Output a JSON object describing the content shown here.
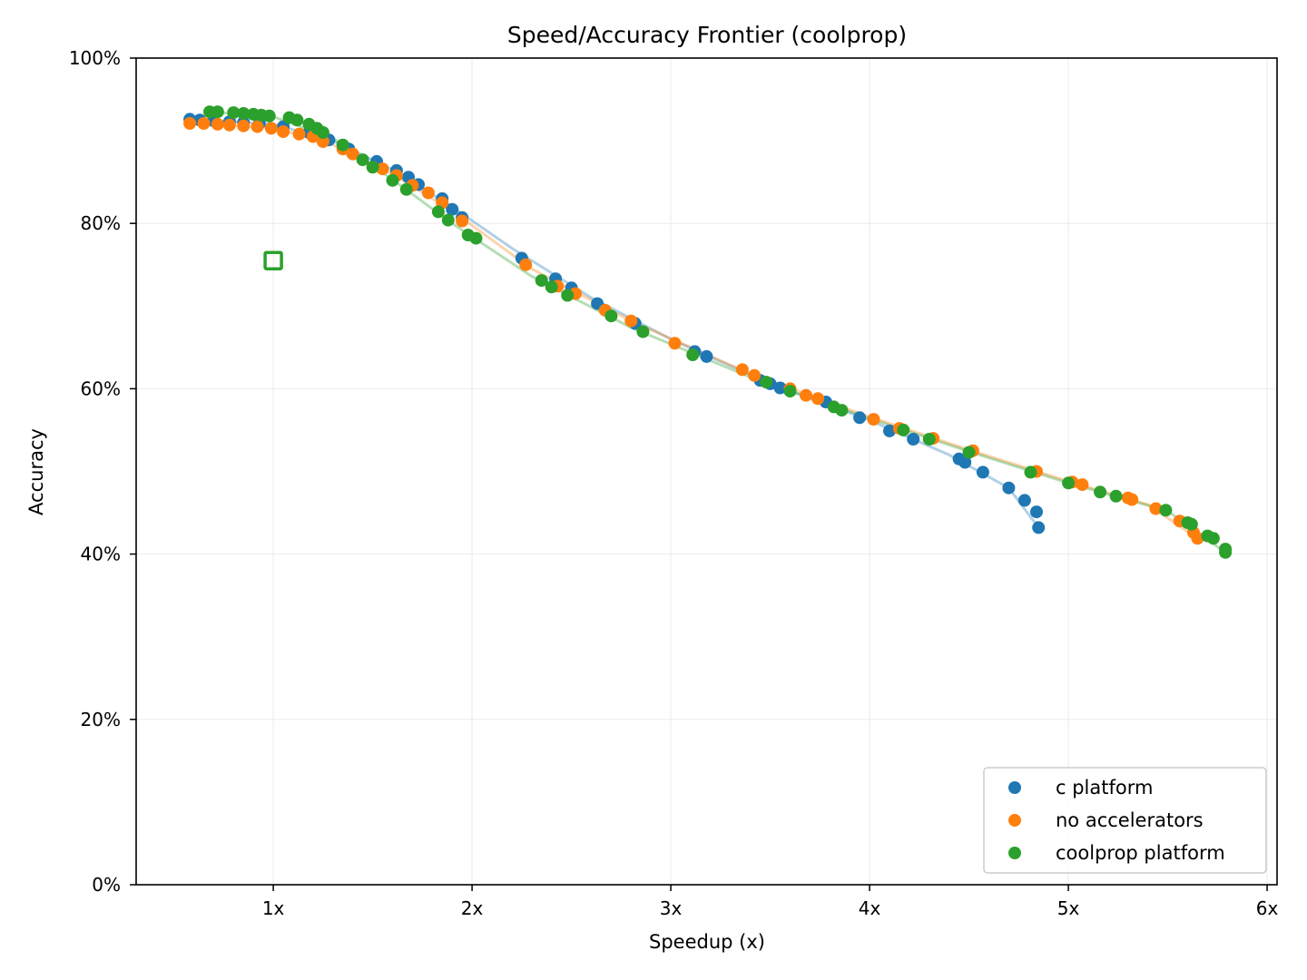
{
  "chart_data": {
    "type": "scatter",
    "title": "Speed/Accuracy Frontier (coolprop)",
    "xlabel": "Speedup (x)",
    "ylabel": "Accuracy",
    "xlim": [
      0.31,
      6.05
    ],
    "ylim": [
      0,
      100
    ],
    "x_ticks": [
      1,
      2,
      3,
      4,
      5,
      6
    ],
    "x_tick_labels": [
      "1x",
      "2x",
      "3x",
      "4x",
      "5x",
      "6x"
    ],
    "y_ticks": [
      0,
      20,
      40,
      60,
      80,
      100
    ],
    "y_tick_labels": [
      "0%",
      "20%",
      "40%",
      "60%",
      "80%",
      "100%"
    ],
    "grid": true,
    "legend_position": "lower right",
    "series": [
      {
        "name": "c platform",
        "color": "#1f77b4",
        "points": [
          [
            0.58,
            92.6
          ],
          [
            0.63,
            92.5
          ],
          [
            0.7,
            92.4
          ],
          [
            0.78,
            92.3
          ],
          [
            0.85,
            92.2
          ],
          [
            0.93,
            92.1
          ],
          [
            1.05,
            91.7
          ],
          [
            1.18,
            91.0
          ],
          [
            1.28,
            90.1
          ],
          [
            1.38,
            89.0
          ],
          [
            1.52,
            87.5
          ],
          [
            1.62,
            86.4
          ],
          [
            1.68,
            85.6
          ],
          [
            1.73,
            84.7
          ],
          [
            1.85,
            83.0
          ],
          [
            1.9,
            81.7
          ],
          [
            1.95,
            80.7
          ],
          [
            2.25,
            75.8
          ],
          [
            2.42,
            73.3
          ],
          [
            2.5,
            72.2
          ],
          [
            2.63,
            70.3
          ],
          [
            2.82,
            67.9
          ],
          [
            3.12,
            64.5
          ],
          [
            3.18,
            63.9
          ],
          [
            3.45,
            61.0
          ],
          [
            3.5,
            60.6
          ],
          [
            3.55,
            60.1
          ],
          [
            3.78,
            58.4
          ],
          [
            3.95,
            56.5
          ],
          [
            4.1,
            54.9
          ],
          [
            4.22,
            53.9
          ],
          [
            4.45,
            51.5
          ],
          [
            4.48,
            51.1
          ],
          [
            4.57,
            49.9
          ],
          [
            4.7,
            48.0
          ],
          [
            4.78,
            46.5
          ],
          [
            4.84,
            45.1
          ],
          [
            4.85,
            43.2
          ]
        ],
        "fit_line": [
          [
            0.58,
            92.6
          ],
          [
            1.0,
            92.0
          ],
          [
            1.3,
            90.0
          ],
          [
            1.6,
            86.5
          ],
          [
            1.9,
            82.0
          ],
          [
            2.2,
            77.0
          ],
          [
            2.6,
            71.0
          ],
          [
            3.0,
            66.0
          ],
          [
            3.5,
            60.6
          ],
          [
            4.0,
            56.2
          ],
          [
            4.4,
            52.0
          ],
          [
            4.7,
            48.0
          ],
          [
            4.85,
            43.2
          ]
        ]
      },
      {
        "name": "no accelerators",
        "color": "#ff7f0e",
        "points": [
          [
            0.58,
            92.1
          ],
          [
            0.65,
            92.1
          ],
          [
            0.72,
            92.0
          ],
          [
            0.78,
            91.9
          ],
          [
            0.85,
            91.8
          ],
          [
            0.92,
            91.7
          ],
          [
            0.99,
            91.5
          ],
          [
            1.05,
            91.1
          ],
          [
            1.13,
            90.8
          ],
          [
            1.2,
            90.5
          ],
          [
            1.25,
            89.9
          ],
          [
            1.35,
            89.0
          ],
          [
            1.4,
            88.4
          ],
          [
            1.55,
            86.6
          ],
          [
            1.62,
            85.8
          ],
          [
            1.7,
            84.6
          ],
          [
            1.78,
            83.7
          ],
          [
            1.85,
            82.5
          ],
          [
            1.95,
            80.3
          ],
          [
            2.27,
            75.0
          ],
          [
            2.43,
            72.4
          ],
          [
            2.52,
            71.5
          ],
          [
            2.67,
            69.5
          ],
          [
            2.8,
            68.2
          ],
          [
            3.02,
            65.5
          ],
          [
            3.36,
            62.3
          ],
          [
            3.42,
            61.6
          ],
          [
            3.6,
            60.0
          ],
          [
            3.68,
            59.2
          ],
          [
            3.74,
            58.8
          ],
          [
            4.02,
            56.3
          ],
          [
            4.15,
            55.2
          ],
          [
            4.32,
            54.0
          ],
          [
            4.52,
            52.5
          ],
          [
            4.84,
            50.0
          ],
          [
            5.02,
            48.7
          ],
          [
            5.07,
            48.4
          ],
          [
            5.3,
            46.8
          ],
          [
            5.32,
            46.6
          ],
          [
            5.44,
            45.5
          ],
          [
            5.56,
            44.0
          ],
          [
            5.63,
            42.6
          ],
          [
            5.65,
            41.9
          ]
        ],
        "fit_line": [
          [
            0.58,
            92.1
          ],
          [
            1.0,
            91.6
          ],
          [
            1.3,
            89.5
          ],
          [
            1.6,
            86.0
          ],
          [
            1.9,
            81.5
          ],
          [
            2.3,
            74.5
          ],
          [
            2.8,
            68.2
          ],
          [
            3.4,
            61.8
          ],
          [
            4.0,
            56.6
          ],
          [
            4.5,
            52.6
          ],
          [
            5.0,
            48.8
          ],
          [
            5.4,
            46.0
          ],
          [
            5.65,
            41.9
          ]
        ]
      },
      {
        "name": "coolprop platform",
        "color": "#2ca02c",
        "points": [
          [
            0.68,
            93.5
          ],
          [
            0.72,
            93.5
          ],
          [
            0.8,
            93.4
          ],
          [
            0.85,
            93.3
          ],
          [
            0.9,
            93.2
          ],
          [
            0.94,
            93.1
          ],
          [
            0.98,
            93.0
          ],
          [
            1.08,
            92.8
          ],
          [
            1.12,
            92.5
          ],
          [
            1.18,
            92.0
          ],
          [
            1.22,
            91.5
          ],
          [
            1.25,
            91.0
          ],
          [
            1.35,
            89.5
          ],
          [
            1.45,
            87.7
          ],
          [
            1.5,
            86.8
          ],
          [
            1.6,
            85.2
          ],
          [
            1.67,
            84.1
          ],
          [
            1.83,
            81.4
          ],
          [
            1.88,
            80.4
          ],
          [
            1.98,
            78.6
          ],
          [
            2.02,
            78.2
          ],
          [
            2.35,
            73.1
          ],
          [
            2.4,
            72.3
          ],
          [
            2.48,
            71.3
          ],
          [
            2.7,
            68.8
          ],
          [
            2.86,
            66.9
          ],
          [
            3.11,
            64.1
          ],
          [
            3.48,
            60.8
          ],
          [
            3.6,
            59.7
          ],
          [
            3.82,
            57.8
          ],
          [
            3.86,
            57.4
          ],
          [
            4.17,
            55.0
          ],
          [
            4.3,
            53.9
          ],
          [
            4.5,
            52.3
          ],
          [
            4.81,
            49.9
          ],
          [
            5.0,
            48.6
          ],
          [
            5.16,
            47.5
          ],
          [
            5.24,
            47.0
          ],
          [
            5.49,
            45.3
          ],
          [
            5.6,
            43.8
          ],
          [
            5.62,
            43.6
          ],
          [
            5.7,
            42.2
          ],
          [
            5.73,
            41.9
          ],
          [
            5.79,
            40.6
          ],
          [
            5.79,
            40.2
          ]
        ],
        "fit_line": [
          [
            0.68,
            93.5
          ],
          [
            1.0,
            92.9
          ],
          [
            1.3,
            90.3
          ],
          [
            1.6,
            85.3
          ],
          [
            1.9,
            80.0
          ],
          [
            2.3,
            73.6
          ],
          [
            2.8,
            67.4
          ],
          [
            3.4,
            61.4
          ],
          [
            4.0,
            56.4
          ],
          [
            4.5,
            52.4
          ],
          [
            5.0,
            48.6
          ],
          [
            5.5,
            45.2
          ],
          [
            5.79,
            40.2
          ]
        ]
      }
    ],
    "annotations": [
      {
        "type": "hollow-square-marker",
        "x": 1.0,
        "y": 75.5,
        "color": "#2ca02c"
      }
    ]
  }
}
